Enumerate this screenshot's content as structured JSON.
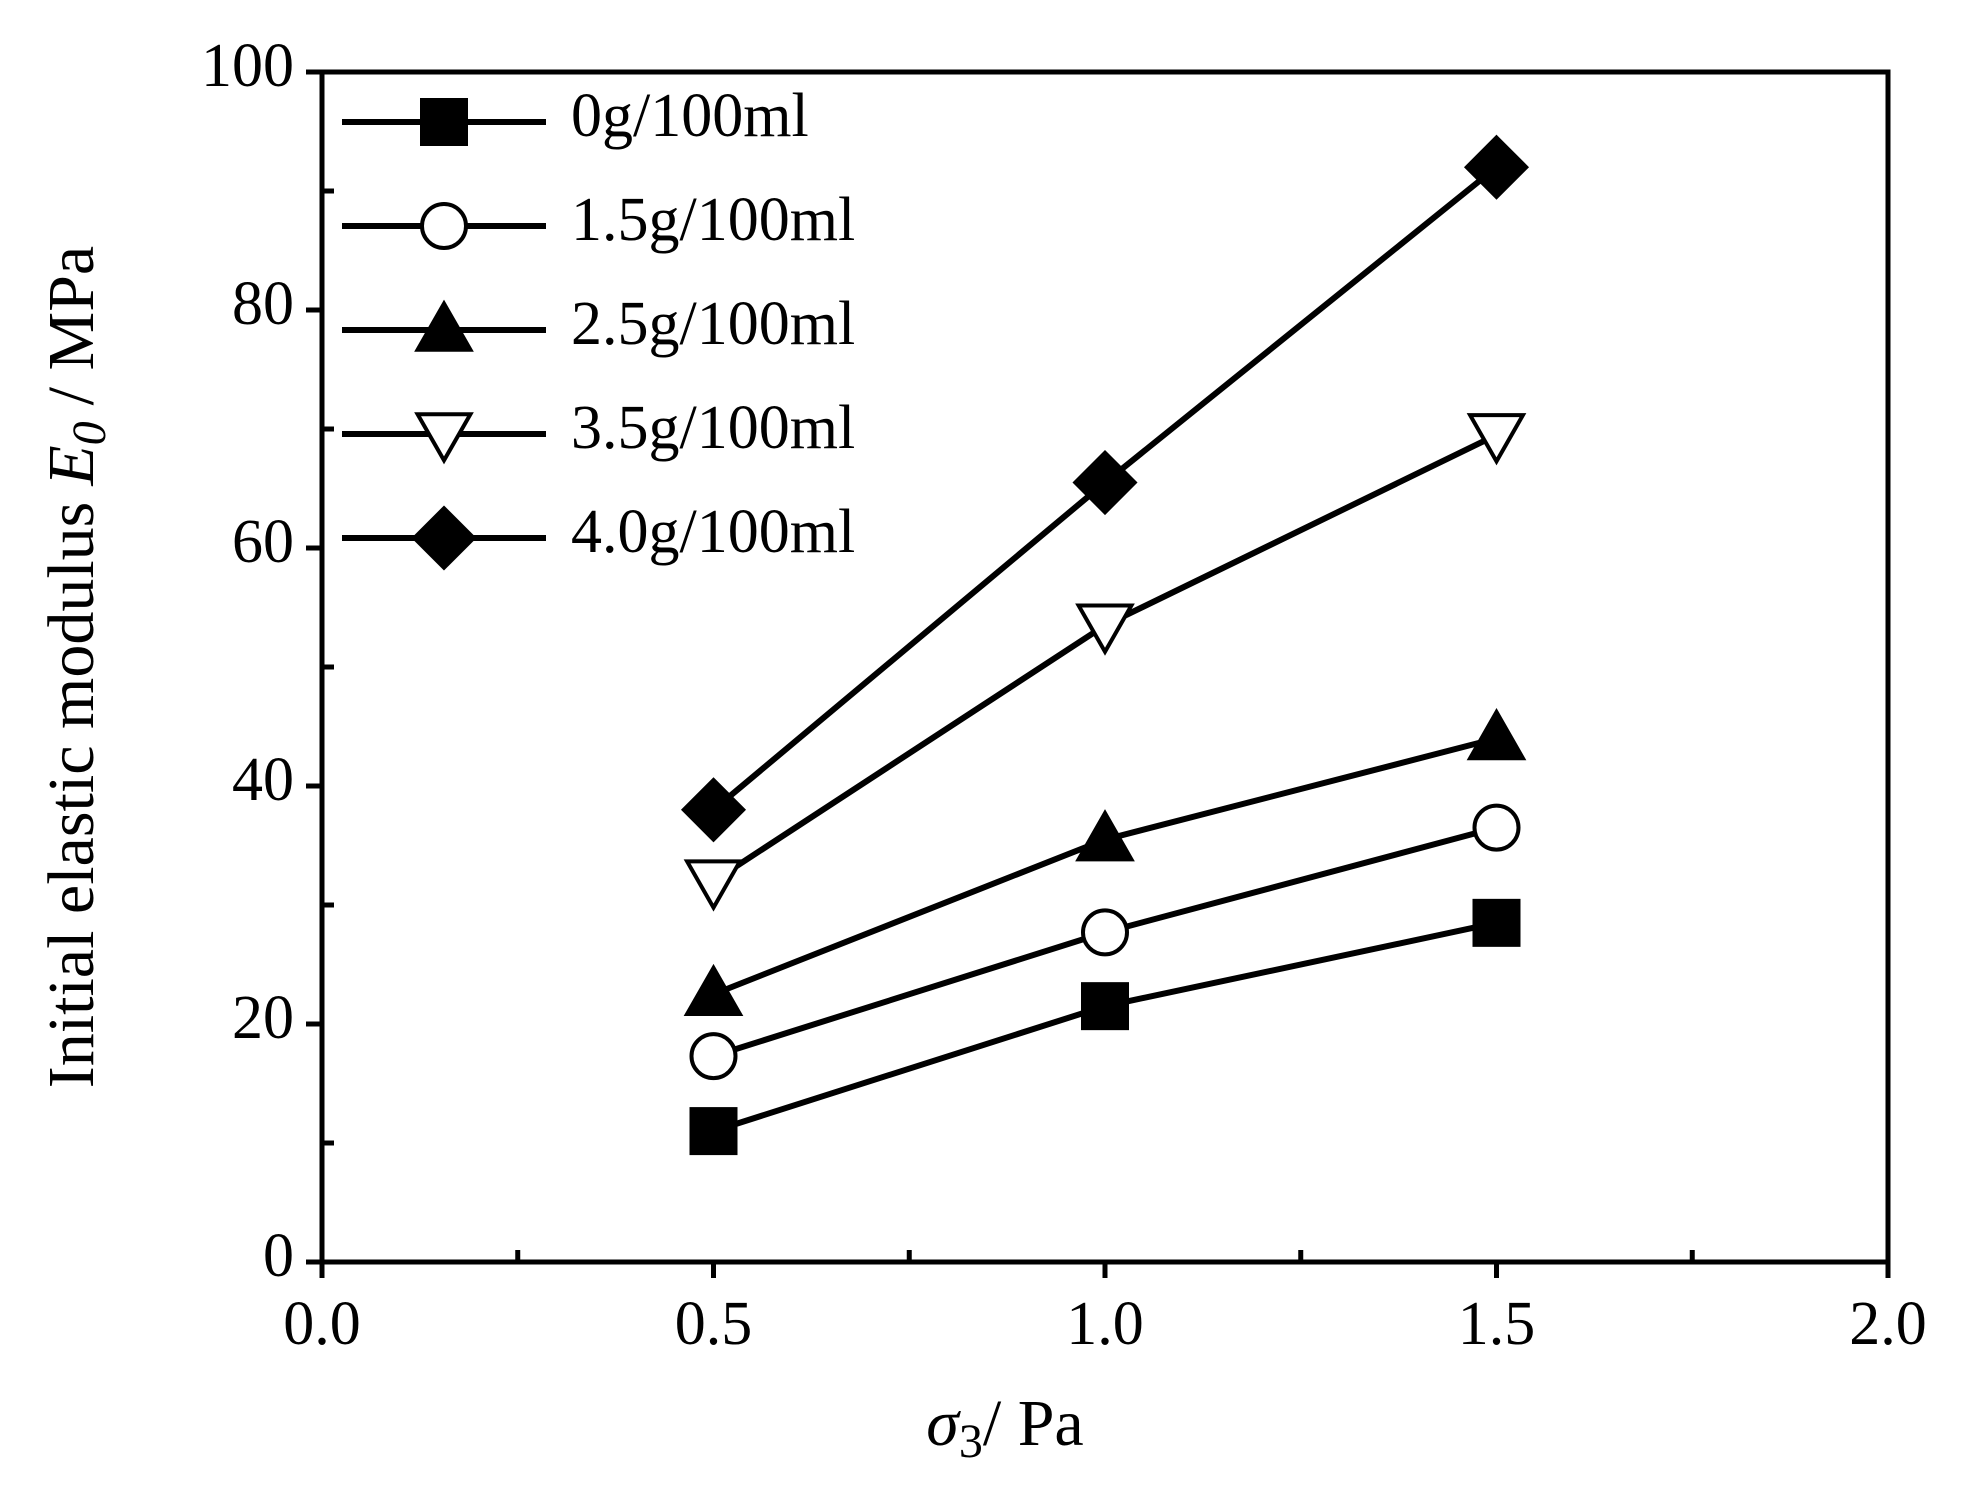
{
  "chart_data": {
    "type": "line",
    "xlabel": {
      "symbol": "σ",
      "subscript": "3",
      "unit": "/ Pa"
    },
    "ylabel": {
      "text": "Initial elastic modulus",
      "symbol": "E",
      "subscript": "0",
      "unit": "/ MPa"
    },
    "x": [
      0.5,
      1.0,
      1.5
    ],
    "series": [
      {
        "name": "0g/100ml",
        "color": "#000000",
        "marker": "square",
        "values": [
          11,
          21.5,
          28.5
        ]
      },
      {
        "name": "1.5g/100ml",
        "color": "#000000",
        "marker": "circle-open",
        "values": [
          17.3,
          27.7,
          36.5
        ]
      },
      {
        "name": "2.5g/100ml",
        "color": "#000000",
        "marker": "triangle-up",
        "values": [
          22.5,
          35.5,
          44
        ]
      },
      {
        "name": "3.5g/100ml",
        "color": "#000000",
        "marker": "triangle-down-open",
        "values": [
          32,
          53.5,
          69.5
        ]
      },
      {
        "name": "4.0g/100ml",
        "color": "#000000",
        "marker": "diamond",
        "values": [
          38,
          65.5,
          92
        ]
      }
    ],
    "xlim": [
      0,
      2
    ],
    "xticks": [
      {
        "value": 0,
        "label": "0.0"
      },
      0.5,
      {
        "value": 1,
        "label": "1.0"
      },
      1.5,
      {
        "value": 2,
        "label": "2.0"
      }
    ],
    "ylim": [
      0,
      100
    ],
    "yticks": [
      0,
      20,
      40,
      60,
      80,
      100
    ],
    "grid": false,
    "legend": "upper left"
  }
}
